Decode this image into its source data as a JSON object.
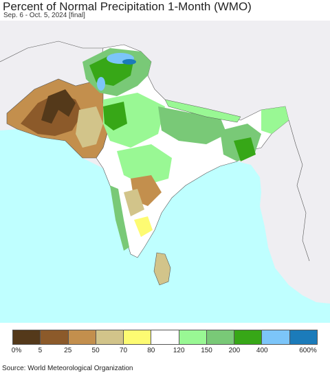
{
  "header": {
    "title": "Percent of Normal Precipitation 1-Month (WMO)",
    "subtitle": "Sep. 6 - Oct. 5, 2024 [final]"
  },
  "map": {
    "region": "South Asia",
    "colors": {
      "ocean": "#bfffff",
      "neighbor_land": "#efeef2",
      "border": "#555555"
    }
  },
  "legend": {
    "colors": [
      "#54391a",
      "#8c5a2a",
      "#c38f4d",
      "#d2c48a",
      "#fdfb72",
      "#ffffff",
      "#99f894",
      "#79c977",
      "#37a717",
      "#7cc5f9",
      "#1b7bba"
    ],
    "labels": [
      "0%",
      "5",
      "25",
      "50",
      "70",
      "80",
      "120",
      "150",
      "200",
      "400",
      "600%"
    ]
  },
  "footer": {
    "source": "Source: World Meteorological Organization"
  }
}
